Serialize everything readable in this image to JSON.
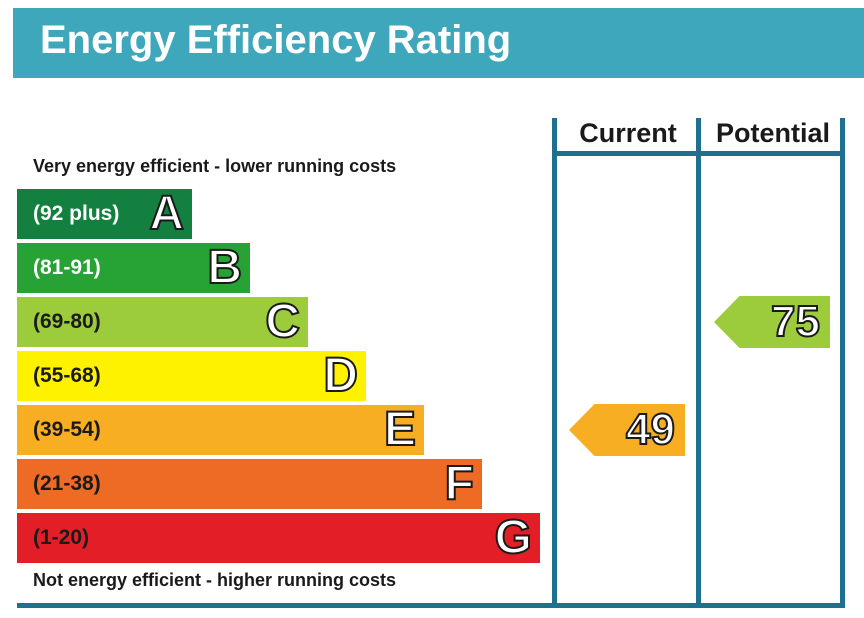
{
  "chart_data": {
    "type": "bar",
    "title": "Energy Efficiency Rating",
    "top_caption": "Very energy efficient - lower running costs",
    "bottom_caption": "Not energy efficient - higher running costs",
    "bands": [
      {
        "letter": "A",
        "range": "(92 plus)",
        "min": 92,
        "max": 100,
        "color": "#138040",
        "dark_text": false
      },
      {
        "letter": "B",
        "range": "(81-91)",
        "min": 81,
        "max": 91,
        "color": "#27a234",
        "dark_text": false
      },
      {
        "letter": "C",
        "range": "(69-80)",
        "min": 69,
        "max": 80,
        "color": "#9ccb3b",
        "dark_text": true
      },
      {
        "letter": "D",
        "range": "(55-68)",
        "min": 55,
        "max": 68,
        "color": "#fff200",
        "dark_text": true
      },
      {
        "letter": "E",
        "range": "(39-54)",
        "min": 39,
        "max": 54,
        "color": "#f7ae23",
        "dark_text": true
      },
      {
        "letter": "F",
        "range": "(21-38)",
        "min": 21,
        "max": 38,
        "color": "#ed6b24",
        "dark_text": true
      },
      {
        "letter": "G",
        "range": "(1-20)",
        "min": 1,
        "max": 20,
        "color": "#e31e26",
        "dark_text": true
      }
    ],
    "columns": {
      "current": "Current",
      "potential": "Potential"
    },
    "current": {
      "value": "49",
      "band": "E",
      "color": "#f7ae23"
    },
    "potential": {
      "value": "75",
      "band": "C",
      "color": "#9ccb3b"
    }
  }
}
